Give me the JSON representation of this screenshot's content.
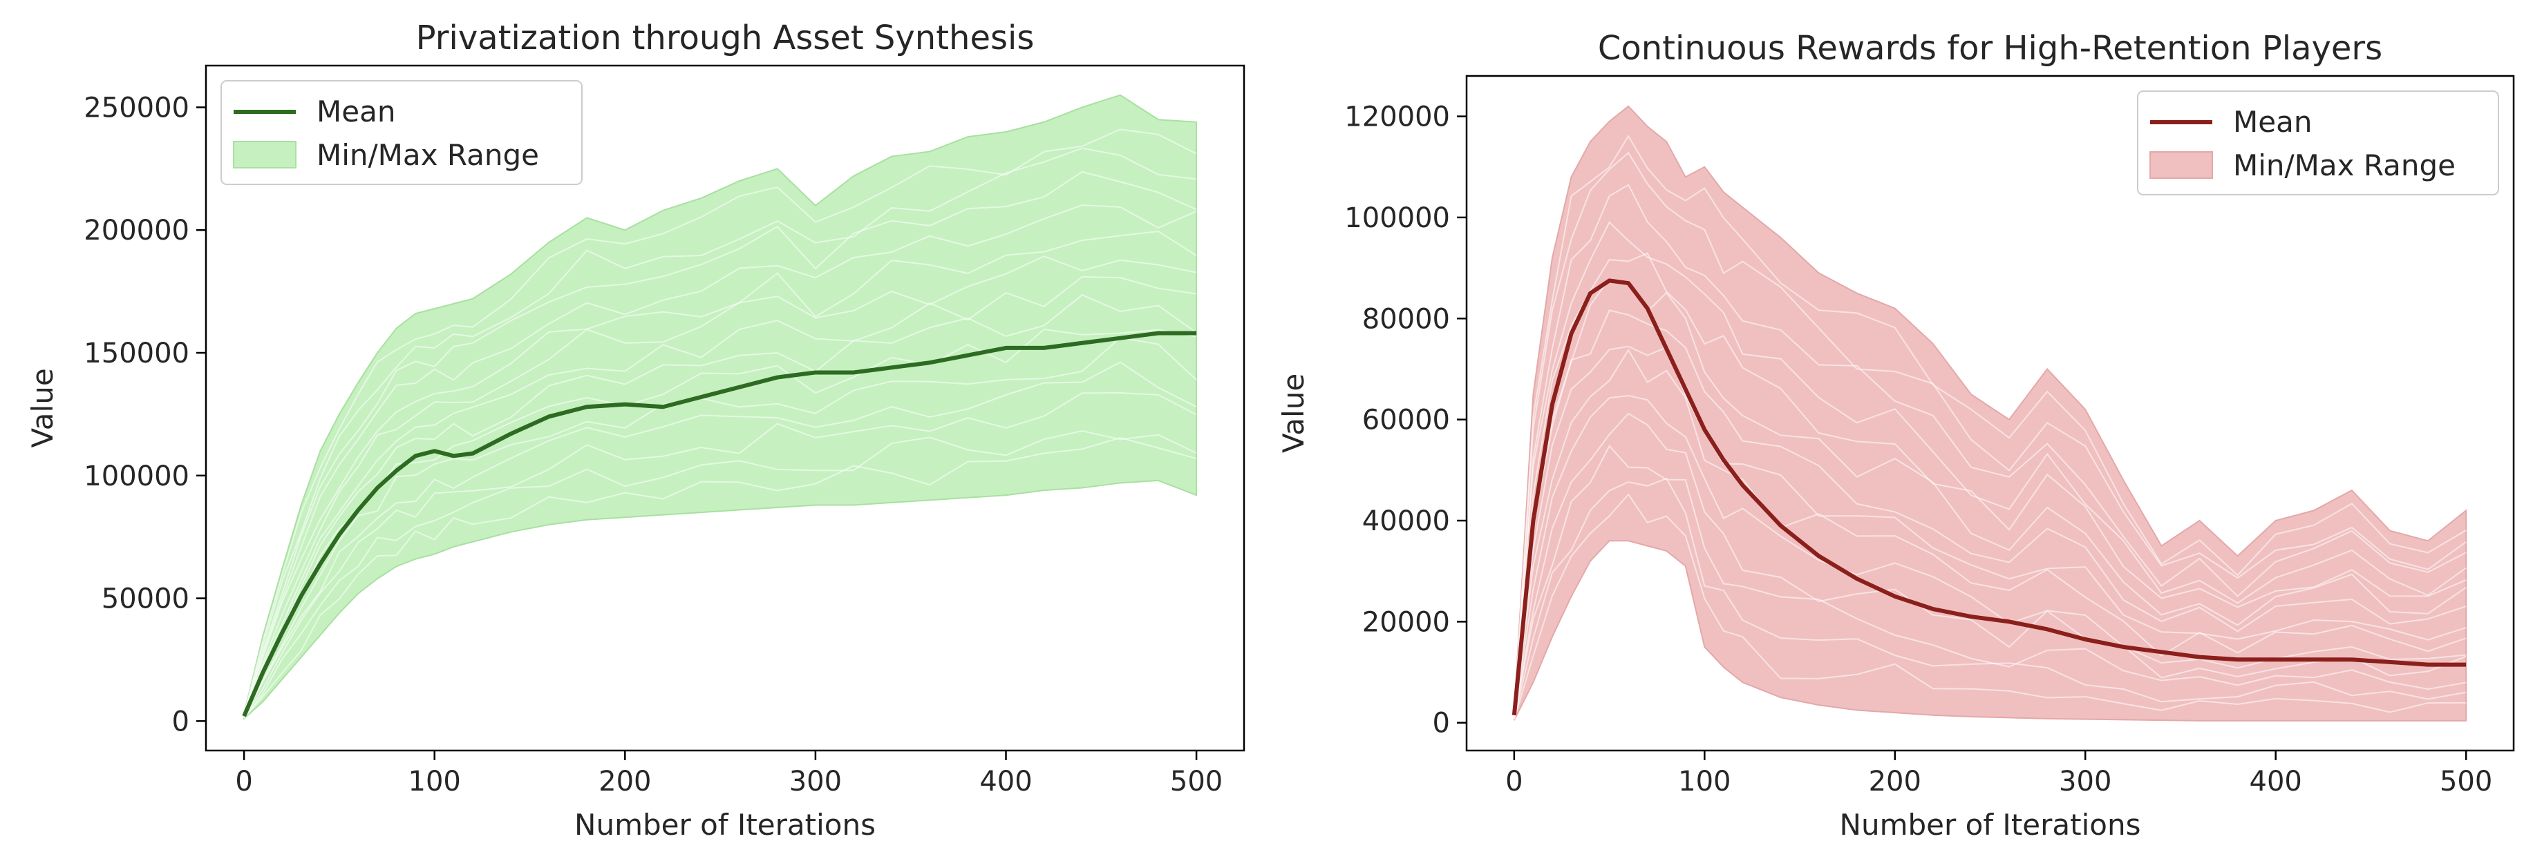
{
  "chart_data": [
    {
      "type": "area",
      "title": "Privatization through Asset Synthesis",
      "xlabel": "Number of Iterations",
      "ylabel": "Value",
      "xlim": [
        -20,
        525
      ],
      "ylim": [
        -12000,
        267000
      ],
      "xticks": [
        0,
        100,
        200,
        300,
        400,
        500
      ],
      "xtick_labels": [
        "0",
        "100",
        "200",
        "300",
        "400",
        "500"
      ],
      "yticks": [
        0,
        50000,
        100000,
        150000,
        200000,
        250000
      ],
      "ytick_labels": [
        "0",
        "50000",
        "100000",
        "150000",
        "200000",
        "250000"
      ],
      "legend": {
        "position": "top-left",
        "entries": [
          "Mean",
          "Min/Max Range"
        ]
      },
      "grid": false,
      "colors": {
        "mean": "#2e6b22",
        "band": "#c6f0c0",
        "band_edge": "#a8e0a0",
        "runs": "#d9ecd6"
      },
      "series": [
        {
          "name": "Mean",
          "x": [
            0,
            10,
            20,
            30,
            40,
            50,
            60,
            70,
            80,
            90,
            100,
            110,
            120,
            140,
            160,
            180,
            200,
            220,
            240,
            260,
            280,
            300,
            320,
            340,
            360,
            380,
            400,
            420,
            440,
            460,
            480,
            500
          ],
          "y": [
            2000,
            20000,
            36000,
            51000,
            64000,
            76000,
            86000,
            95000,
            102000,
            108000,
            110000,
            108000,
            109000,
            117000,
            124000,
            128000,
            129000,
            128000,
            132000,
            136000,
            140000,
            142000,
            142000,
            144000,
            146000,
            149000,
            152000,
            152000,
            154000,
            156000,
            158000,
            158000
          ]
        },
        {
          "name": "Min/Max Range",
          "x": [
            0,
            10,
            20,
            30,
            40,
            50,
            60,
            70,
            80,
            90,
            100,
            110,
            120,
            140,
            160,
            180,
            200,
            220,
            240,
            260,
            280,
            300,
            320,
            340,
            360,
            380,
            400,
            420,
            440,
            460,
            480,
            500
          ],
          "upper": [
            3000,
            35000,
            62000,
            88000,
            110000,
            125000,
            138000,
            150000,
            160000,
            166000,
            168000,
            170000,
            172000,
            182000,
            195000,
            205000,
            200000,
            208000,
            213000,
            220000,
            225000,
            210000,
            222000,
            230000,
            232000,
            238000,
            240000,
            244000,
            250000,
            255000,
            245000,
            244000
          ],
          "lower": [
            1000,
            8000,
            17000,
            26000,
            35000,
            44000,
            52000,
            58000,
            63000,
            66000,
            68000,
            71000,
            73000,
            77000,
            80000,
            82000,
            83000,
            84000,
            85000,
            86000,
            87000,
            88000,
            88000,
            89000,
            90000,
            91000,
            92000,
            94000,
            95000,
            97000,
            98000,
            92000
          ]
        }
      ]
    },
    {
      "type": "area",
      "title": "Continuous Rewards for High-Retention Players",
      "xlabel": "Number of Iterations",
      "ylabel": "Value",
      "xlim": [
        -25,
        525
      ],
      "ylim": [
        -5500,
        128000
      ],
      "xticks": [
        0,
        100,
        200,
        300,
        400,
        500
      ],
      "xtick_labels": [
        "0",
        "100",
        "200",
        "300",
        "400",
        "500"
      ],
      "yticks": [
        0,
        20000,
        40000,
        60000,
        80000,
        100000,
        120000
      ],
      "ytick_labels": [
        "0",
        "20000",
        "40000",
        "60000",
        "80000",
        "100000",
        "120000"
      ],
      "legend": {
        "position": "top-right",
        "entries": [
          "Mean",
          "Min/Max Range"
        ]
      },
      "grid": false,
      "colors": {
        "mean": "#8b1f1b",
        "band": "#f0c0c0",
        "band_edge": "#e4a8a8",
        "runs": "#f7dede"
      },
      "series": [
        {
          "name": "Mean",
          "x": [
            0,
            10,
            20,
            30,
            40,
            50,
            60,
            70,
            80,
            90,
            100,
            110,
            120,
            140,
            160,
            180,
            200,
            220,
            240,
            260,
            280,
            300,
            320,
            340,
            360,
            380,
            400,
            420,
            440,
            460,
            480,
            500
          ],
          "y": [
            1500,
            40000,
            63000,
            77000,
            85000,
            87500,
            87000,
            82000,
            74000,
            66000,
            58000,
            52000,
            47000,
            39000,
            33000,
            28500,
            25000,
            22500,
            21000,
            20000,
            18500,
            16500,
            15000,
            14000,
            13000,
            12500,
            12500,
            12500,
            12500,
            12000,
            11500,
            11500
          ]
        },
        {
          "name": "Min/Max Range",
          "x": [
            0,
            10,
            20,
            30,
            40,
            50,
            60,
            70,
            80,
            90,
            100,
            110,
            120,
            140,
            160,
            180,
            200,
            220,
            240,
            260,
            280,
            300,
            320,
            340,
            360,
            380,
            400,
            420,
            440,
            460,
            480,
            500
          ],
          "upper": [
            2000,
            65000,
            92000,
            108000,
            115000,
            119000,
            122000,
            118000,
            115000,
            108000,
            110000,
            105000,
            102000,
            96000,
            89000,
            85000,
            82000,
            75000,
            65000,
            60000,
            70000,
            62000,
            48000,
            35000,
            40000,
            33000,
            40000,
            42000,
            46000,
            38000,
            36000,
            42000
          ],
          "lower": [
            500,
            8000,
            17000,
            25000,
            32000,
            36000,
            36000,
            35000,
            34000,
            31000,
            15000,
            11000,
            8000,
            5000,
            3500,
            2500,
            2000,
            1500,
            1200,
            1000,
            800,
            700,
            600,
            500,
            400,
            400,
            400,
            400,
            400,
            400,
            400,
            400
          ]
        }
      ]
    }
  ]
}
